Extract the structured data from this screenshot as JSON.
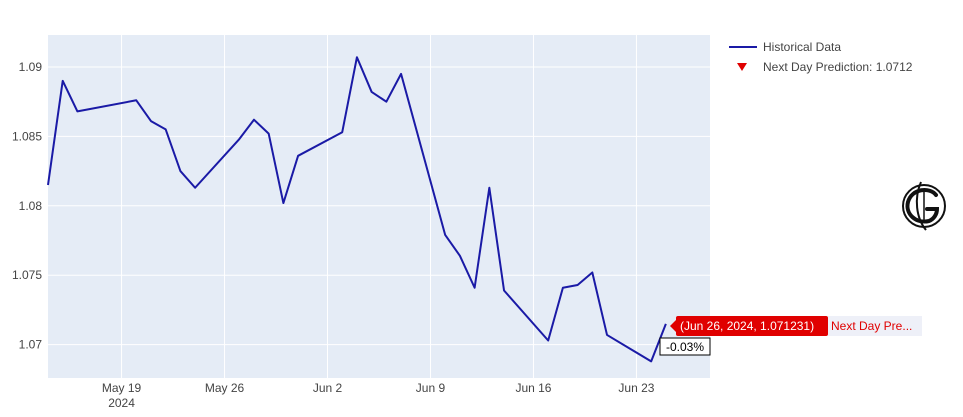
{
  "chart_data": {
    "type": "line",
    "title": "",
    "xlabel": "",
    "ylabel": "",
    "x_range": [
      "2024-05-14",
      "2024-06-28"
    ],
    "ylim": [
      1.0676,
      1.0923
    ],
    "x_ticks": [
      {
        "date": "2024-05-19",
        "label": "May 19",
        "sublabel": "2024"
      },
      {
        "date": "2024-05-26",
        "label": "May 26",
        "sublabel": ""
      },
      {
        "date": "2024-06-02",
        "label": "Jun 2",
        "sublabel": ""
      },
      {
        "date": "2024-06-09",
        "label": "Jun 9",
        "sublabel": ""
      },
      {
        "date": "2024-06-16",
        "label": "Jun 16",
        "sublabel": ""
      },
      {
        "date": "2024-06-23",
        "label": "Jun 23",
        "sublabel": ""
      }
    ],
    "y_ticks": [
      {
        "value": 1.07,
        "label": "1.07"
      },
      {
        "value": 1.075,
        "label": "1.075"
      },
      {
        "value": 1.08,
        "label": "1.08"
      },
      {
        "value": 1.085,
        "label": "1.085"
      },
      {
        "value": 1.09,
        "label": "1.09"
      }
    ],
    "grid": true,
    "legend_position": "top-right",
    "series": [
      {
        "name": "Historical Data",
        "color": "#1a1aa6",
        "points": [
          [
            "2024-05-14",
            1.0815
          ],
          [
            "2024-05-15",
            1.089
          ],
          [
            "2024-05-16",
            1.0868
          ],
          [
            "2024-05-20",
            1.0876
          ],
          [
            "2024-05-21",
            1.0861
          ],
          [
            "2024-05-22",
            1.0855
          ],
          [
            "2024-05-23",
            1.0825
          ],
          [
            "2024-05-24",
            1.0813
          ],
          [
            "2024-05-27",
            1.0848
          ],
          [
            "2024-05-28",
            1.0862
          ],
          [
            "2024-05-29",
            1.0852
          ],
          [
            "2024-05-30",
            1.0802
          ],
          [
            "2024-05-31",
            1.0836
          ],
          [
            "2024-06-03",
            1.0853
          ],
          [
            "2024-06-04",
            1.0907
          ],
          [
            "2024-06-05",
            1.0882
          ],
          [
            "2024-06-06",
            1.0875
          ],
          [
            "2024-06-07",
            1.0895
          ],
          [
            "2024-06-10",
            1.0779
          ],
          [
            "2024-06-11",
            1.0764
          ],
          [
            "2024-06-12",
            1.0741
          ],
          [
            "2024-06-13",
            1.0813
          ],
          [
            "2024-06-14",
            1.0739
          ],
          [
            "2024-06-17",
            1.0703
          ],
          [
            "2024-06-18",
            1.0741
          ],
          [
            "2024-06-19",
            1.0743
          ],
          [
            "2024-06-20",
            1.0752
          ],
          [
            "2024-06-21",
            1.0707
          ],
          [
            "2024-06-24",
            1.0688
          ],
          [
            "2024-06-25",
            1.0715
          ]
        ]
      },
      {
        "name": "Next Day Prediction: 1.0712",
        "color": "#e00000",
        "marker": "triangle-down",
        "points": [
          [
            "2024-06-26",
            1.071231
          ]
        ]
      }
    ],
    "hover_label": {
      "text": "(Jun 26, 2024, 1.071231)",
      "name": "Next Day Pre..."
    },
    "annotation": {
      "text": "-0.03%"
    }
  },
  "logo": {
    "name": "g-logo-icon"
  }
}
